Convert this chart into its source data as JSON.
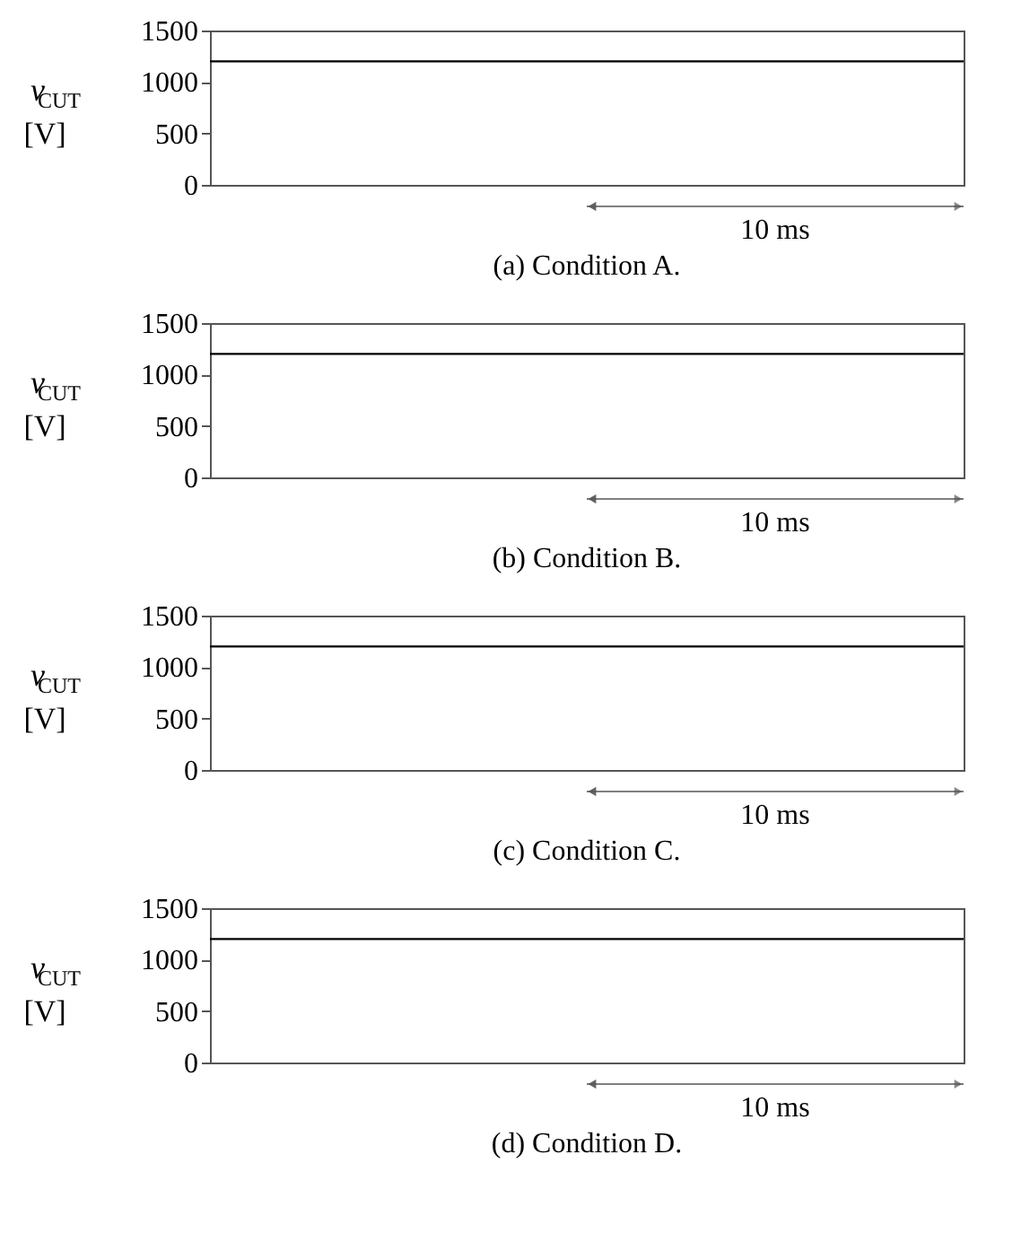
{
  "chart_data": [
    {
      "type": "line",
      "title": "(a) Condition A.",
      "ylabel": "v$_{CUT}$ [V]",
      "categories": [
        null,
        null,
        null,
        null,
        null,
        null,
        null,
        null,
        null,
        null,
        null,
        null,
        null,
        null,
        null,
        null,
        null,
        null,
        null,
        null,
        null
      ],
      "series": [
        {
          "color": "#000000",
          "values": [
            1200,
            1200,
            1200,
            1200,
            1200,
            1200,
            1200,
            1200,
            1200,
            1200,
            1200,
            1200,
            1200,
            1200,
            1200,
            1200,
            1200,
            1200,
            1200,
            1200,
            1200
          ]
        }
      ],
      "ylim": [
        0,
        1500
      ],
      "yticks": [
        0,
        500,
        1000,
        1500
      ],
      "tick_labels": "y",
      "annotations": [
        "10 ms"
      ]
    },
    {
      "type": "line",
      "title": "(b) Condition B.",
      "ylabel": "v$_{CUT}$ [V]",
      "categories": [
        null,
        null,
        null,
        null,
        null,
        null,
        null,
        null,
        null,
        null,
        null,
        null,
        null,
        null,
        null,
        null,
        null,
        null,
        null,
        null,
        null
      ],
      "series": [
        {
          "color": "#000000",
          "values": [
            1200,
            1200,
            1200,
            1200,
            1200,
            1200,
            1200,
            1200,
            1200,
            1200,
            1200,
            1200,
            1200,
            1200,
            1200,
            1200,
            1200,
            1200,
            1200,
            1200,
            1200
          ]
        }
      ],
      "ylim": [
        0,
        1500
      ],
      "yticks": [
        0,
        500,
        1000,
        1500
      ],
      "tick_labels": "y",
      "annotations": [
        "10 ms"
      ]
    },
    {
      "type": "line",
      "title": "(c) Condition C.",
      "ylabel": "v$_{CUT}$ [V]",
      "categories": [
        null,
        null,
        null,
        null,
        null,
        null,
        null,
        null,
        null,
        null,
        null,
        null,
        null,
        null,
        null,
        null,
        null,
        null,
        null,
        null,
        null
      ],
      "series": [
        {
          "color": "#000000",
          "values": [
            1200,
            1200,
            1200,
            1200,
            1200,
            1200,
            1200,
            1200,
            1200,
            1200,
            1200,
            1200,
            1200,
            1200,
            1200,
            1200,
            1200,
            1200,
            1200,
            1200,
            1200
          ]
        }
      ],
      "ylim": [
        0,
        1500
      ],
      "yticks": [
        0,
        500,
        1000,
        1500
      ],
      "tick_labels": "y",
      "annotations": [
        "10 ms"
      ]
    },
    {
      "type": "line",
      "title": "(d) Condition D.",
      "ylabel": "v$_{CUT}$ [V]",
      "categories": [
        null,
        null,
        null,
        null,
        null,
        null,
        null,
        null,
        null,
        null,
        null,
        null,
        null,
        null,
        null,
        null,
        null,
        null,
        null,
        null,
        null
      ],
      "series": [
        {
          "color": "#000000",
          "values": [
            1200,
            1200,
            1200,
            1200,
            1200,
            1200,
            1200,
            1200,
            1200,
            1200,
            1200,
            1200,
            1200,
            1200,
            1200,
            1200,
            1200,
            1200,
            1200,
            1200,
            1200
          ]
        }
      ],
      "ylim": [
        0,
        1500
      ],
      "yticks": [
        0,
        500,
        1000,
        1500
      ],
      "tick_labels": "y",
      "annotations": [
        "10 ms"
      ]
    }
  ]
}
